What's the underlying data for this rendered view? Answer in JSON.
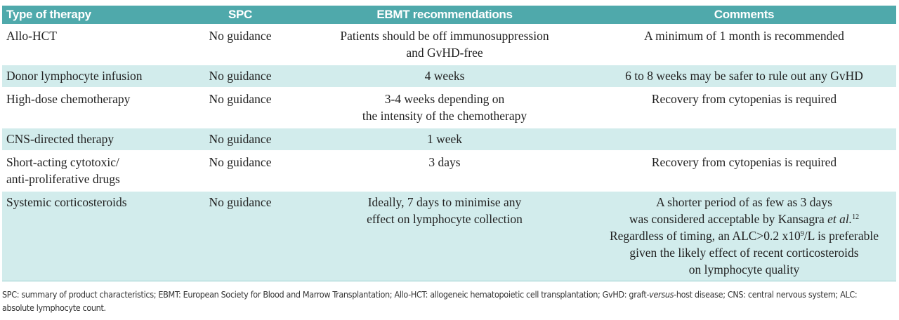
{
  "table": {
    "header": [
      "Type of therapy",
      "SPC",
      "EBMT recommendations",
      "Comments"
    ],
    "rows": [
      [
        [
          "Allo-HCT"
        ],
        [
          "No guidance"
        ],
        [
          "Patients should be off immunosuppression",
          "and GvHD-free"
        ],
        [
          "A minimum of 1 month is recommended"
        ]
      ],
      [
        [
          "Donor lymphocyte infusion"
        ],
        [
          "No guidance"
        ],
        [
          "4 weeks"
        ],
        [
          "6 to 8 weeks may be safer to rule out any GvHD"
        ]
      ],
      [
        [
          "High-dose chemotherapy"
        ],
        [
          "No guidance"
        ],
        [
          "3-4 weeks depending on",
          "the intensity of the chemotherapy"
        ],
        [
          "Recovery from cytopenias is required"
        ]
      ],
      [
        [
          "CNS-directed therapy"
        ],
        [
          "No guidance"
        ],
        [
          "1 week"
        ],
        []
      ],
      [
        [
          "Short-acting cytotoxic/",
          "anti-proliferative drugs"
        ],
        [
          "No guidance"
        ],
        [
          "3 days"
        ],
        [
          "Recovery from cytopenias is required"
        ]
      ],
      [
        [
          "Systemic corticosteroids"
        ],
        [
          "No guidance"
        ],
        [
          "Ideally, 7 days to minimise any",
          "effect on lymphocyte collection"
        ],
        [
          "A shorter period of as few as 3 days",
          [
            {
              "text": "was considered acceptable by Kansagra "
            },
            {
              "text": "et al.",
              "style": "italic"
            },
            {
              "text": "12",
              "style": "sup"
            }
          ],
          [
            {
              "text": "Regardless of timing, an ALC>0.2 x10"
            },
            {
              "text": "9",
              "style": "sup"
            },
            {
              "text": "/L is preferable"
            }
          ],
          "given the likely effect of recent corticosteroids",
          "on lymphocyte quality"
        ]
      ]
    ]
  },
  "footnote": [
    {
      "text": "SPC: summary of product characteristics; EBMT: European Society for Blood and Marrow Transplantation; Allo-HCT: allogeneic hematopoietic cell transplantation; GvHD: graft-"
    },
    {
      "text": "versus",
      "style": "italic"
    },
    {
      "text": "-host disease; CNS: central nervous system; ALC: absolute lymphocyte count."
    }
  ]
}
